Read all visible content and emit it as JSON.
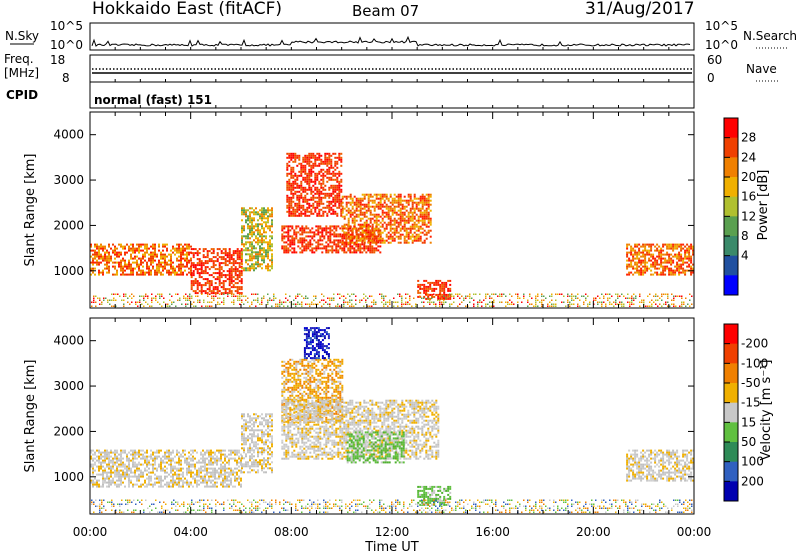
{
  "header": {
    "title": "Hokkaido East (fitACF)",
    "beam": "Beam 07",
    "date": "31/Aug/2017"
  },
  "panels": {
    "nsky": {
      "label": "N.Sky",
      "left_ticks": [
        "10^5",
        "10^0"
      ],
      "right_ticks": [
        "10^5",
        "10^0"
      ],
      "right_label": "N.Search"
    },
    "freq": {
      "label_line1": "Freq.",
      "label_line2": "[MHz]",
      "left_ticks": [
        "18",
        "8"
      ],
      "right_ticks": [
        "60",
        "0"
      ],
      "right_label": "Nave"
    },
    "cpid": {
      "label": "CPID",
      "mode": "normal (fast) 151"
    }
  },
  "chart_data": [
    {
      "type": "heatmap",
      "title": "",
      "xlabel": "Time UT",
      "ylabel": "Slant Range [km]",
      "x_ticks": [
        "00:00",
        "04:00",
        "08:00",
        "12:00",
        "16:00",
        "20:00",
        "00:00"
      ],
      "xlim_hours": [
        0,
        24
      ],
      "y_ticks": [
        1000,
        2000,
        3000,
        4000
      ],
      "ylim": [
        180,
        4500
      ],
      "colorbar": {
        "label": "Power [dB]",
        "ticks": [
          "4",
          "8",
          "12",
          "16",
          "20",
          "24",
          "28"
        ],
        "colors": [
          "#0000ff",
          "#2050a0",
          "#3a8a6a",
          "#5aa050",
          "#b0c030",
          "#f0b000",
          "#f08000",
          "#f04000",
          "#ff0000"
        ]
      },
      "regions": [
        {
          "t0": 0.0,
          "t1": 4.0,
          "r0": 900,
          "r1": 1600,
          "value": "high"
        },
        {
          "t0": 4.0,
          "t1": 6.0,
          "r0": 500,
          "r1": 1500,
          "value": "max"
        },
        {
          "t0": 6.0,
          "t1": 7.2,
          "r0": 1000,
          "r1": 2400,
          "value": "mid"
        },
        {
          "t0": 7.6,
          "t1": 11.5,
          "r0": 1400,
          "r1": 2000,
          "value": "max"
        },
        {
          "t0": 7.8,
          "t1": 10.0,
          "r0": 2200,
          "r1": 3600,
          "value": "max"
        },
        {
          "t0": 10.0,
          "t1": 13.5,
          "r0": 1600,
          "r1": 2700,
          "value": "high"
        },
        {
          "t0": 13.0,
          "t1": 14.3,
          "r0": 400,
          "r1": 800,
          "value": "max"
        },
        {
          "t0": 21.3,
          "t1": 24.0,
          "r0": 900,
          "r1": 1600,
          "value": "high"
        }
      ]
    },
    {
      "type": "heatmap",
      "title": "",
      "xlabel": "Time UT",
      "ylabel": "Slant Range [km]",
      "x_ticks": [
        "00:00",
        "04:00",
        "08:00",
        "12:00",
        "16:00",
        "20:00",
        "00:00"
      ],
      "xlim_hours": [
        0,
        24
      ],
      "y_ticks": [
        1000,
        2000,
        3000,
        4000
      ],
      "ylim": [
        180,
        4500
      ],
      "colorbar": {
        "label": "Velocity [m s⁻¹]",
        "ticks": [
          "200",
          "100",
          "50",
          "15",
          "-15",
          "-50",
          "-100",
          "-200"
        ],
        "colors": [
          "#0000b0",
          "#3060c0",
          "#2e8b57",
          "#60c040",
          "#c8c8c8",
          "#f0b000",
          "#f08000",
          "#f04000",
          "#ff0000"
        ]
      },
      "regions": [
        {
          "t0": 0.0,
          "t1": 6.0,
          "r0": 800,
          "r1": 1600,
          "value": "~0"
        },
        {
          "t0": 6.0,
          "t1": 7.2,
          "r0": 1100,
          "r1": 2400,
          "value": "~0"
        },
        {
          "t0": 7.6,
          "t1": 10.0,
          "r0": 2200,
          "r1": 3600,
          "value": "-50"
        },
        {
          "t0": 8.5,
          "t1": 9.5,
          "r0": 3600,
          "r1": 4300,
          "value": "200"
        },
        {
          "t0": 7.6,
          "t1": 13.8,
          "r0": 1400,
          "r1": 2700,
          "value": "~0"
        },
        {
          "t0": 10.2,
          "t1": 12.5,
          "r0": 1300,
          "r1": 2000,
          "value": "15"
        },
        {
          "t0": 13.0,
          "t1": 14.3,
          "r0": 400,
          "r1": 800,
          "value": "15"
        },
        {
          "t0": 21.3,
          "t1": 24.0,
          "r0": 900,
          "r1": 1600,
          "value": "~0"
        }
      ]
    }
  ]
}
